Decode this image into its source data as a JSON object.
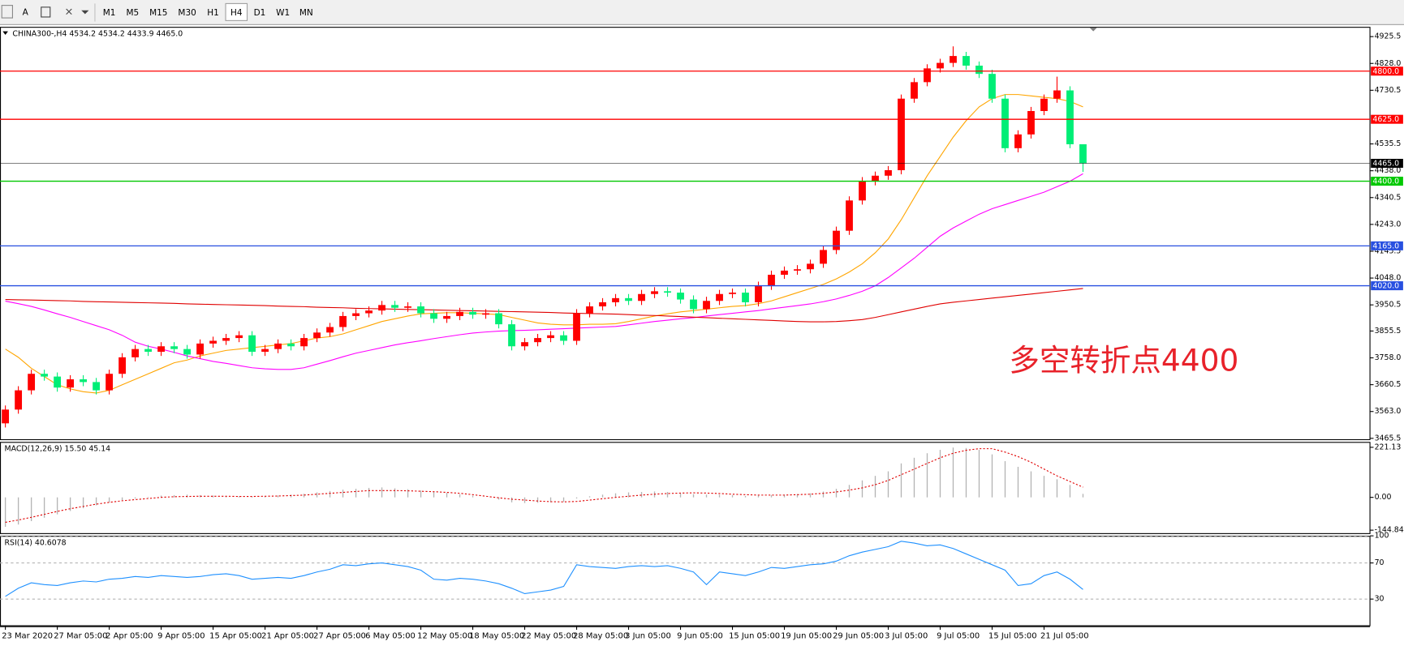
{
  "toolbar": {
    "text_tool": "A",
    "timeframes": [
      "M1",
      "M5",
      "M15",
      "M30",
      "H1",
      "H4",
      "D1",
      "W1",
      "MN"
    ]
  },
  "chart_data": [
    {
      "type": "candlestick",
      "title": "CHINA300-,H4  4534.2 4534.2 4433.9 4465.0",
      "categories": [
        "23 Mar 2020",
        null,
        null,
        null,
        "27 Mar 05:00",
        null,
        null,
        null,
        "2 Apr 05:00",
        null,
        null,
        null,
        "9 Apr 05:00",
        null,
        null,
        null,
        "15 Apr 05:00",
        null,
        null,
        null,
        "21 Apr 05:00",
        null,
        null,
        null,
        "27 Apr 05:00",
        null,
        null,
        null,
        "6 May 05:00",
        null,
        null,
        null,
        "12 May 05:00",
        null,
        null,
        null,
        "18 May 05:00",
        null,
        null,
        null,
        "22 May 05:00",
        null,
        null,
        null,
        "28 May 05:00",
        null,
        null,
        null,
        "3 Jun 05:00",
        null,
        null,
        null,
        "9 Jun 05:00",
        null,
        null,
        null,
        "15 Jun 05:00",
        null,
        null,
        null,
        "19 Jun 05:00",
        null,
        null,
        null,
        "29 Jun 05:00",
        null,
        null,
        null,
        "3 Jul 05:00",
        null,
        null,
        null,
        "9 Jul 05:00",
        null,
        null,
        null,
        "15 Jul 05:00",
        null,
        null,
        null,
        "21 Jul 05:00",
        null,
        null,
        null
      ],
      "open": [
        3520,
        3570,
        3640,
        3700,
        3690,
        3650,
        3680,
        3670,
        3640,
        3700,
        3760,
        3790,
        3780,
        3800,
        3790,
        3770,
        3810,
        3820,
        3830,
        3840,
        3780,
        3790,
        3810,
        3800,
        3830,
        3850,
        3870,
        3910,
        3920,
        3930,
        3950,
        3940,
        3945,
        3920,
        3900,
        3910,
        3925,
        3915,
        3920,
        3880,
        3800,
        3815,
        3830,
        3840,
        3820,
        3920,
        3945,
        3960,
        3975,
        3965,
        3990,
        4000,
        3995,
        3970,
        3935,
        3965,
        3990,
        3995,
        3960,
        4020,
        4060,
        4075,
        4080,
        4100,
        4150,
        4220,
        4330,
        4400,
        4420,
        4440,
        4700,
        4760,
        4810,
        4830,
        4855,
        4820,
        4790,
        4700,
        4520,
        4570,
        4655,
        4700,
        4730,
        4534.2
      ],
      "high": [
        3585,
        3655,
        3715,
        3715,
        3705,
        3695,
        3695,
        3685,
        3715,
        3775,
        3805,
        3805,
        3815,
        3815,
        3805,
        3825,
        3835,
        3845,
        3855,
        3855,
        3805,
        3825,
        3825,
        3845,
        3865,
        3885,
        3925,
        3935,
        3945,
        3965,
        3965,
        3960,
        3960,
        3935,
        3925,
        3940,
        3940,
        3935,
        3935,
        3895,
        3830,
        3845,
        3855,
        3855,
        3935,
        3960,
        3975,
        3990,
        3990,
        4005,
        4015,
        4015,
        4010,
        3985,
        3980,
        4005,
        4010,
        4010,
        4035,
        4075,
        4090,
        4095,
        4115,
        4165,
        4235,
        4345,
        4415,
        4435,
        4455,
        4715,
        4775,
        4825,
        4845,
        4890,
        4870,
        4835,
        4805,
        4715,
        4585,
        4670,
        4715,
        4780,
        4745,
        4534.2
      ],
      "low": [
        3505,
        3555,
        3625,
        3675,
        3635,
        3635,
        3655,
        3625,
        3625,
        3685,
        3745,
        3765,
        3765,
        3775,
        3755,
        3755,
        3795,
        3805,
        3815,
        3765,
        3765,
        3775,
        3785,
        3785,
        3815,
        3835,
        3855,
        3895,
        3905,
        3915,
        3925,
        3925,
        3905,
        3885,
        3885,
        3895,
        3900,
        3900,
        3865,
        3785,
        3785,
        3800,
        3815,
        3805,
        3805,
        3905,
        3930,
        3945,
        3950,
        3950,
        3975,
        3980,
        3955,
        3920,
        3920,
        3950,
        3975,
        3945,
        3945,
        4005,
        4045,
        4060,
        4065,
        4085,
        4135,
        4205,
        4315,
        4385,
        4405,
        4425,
        4685,
        4745,
        4795,
        4815,
        4805,
        4775,
        4685,
        4505,
        4505,
        4555,
        4640,
        4685,
        4520,
        4433.9
      ],
      "close": [
        3570,
        3640,
        3700,
        3690,
        3650,
        3680,
        3670,
        3640,
        3700,
        3760,
        3790,
        3780,
        3800,
        3790,
        3770,
        3810,
        3820,
        3830,
        3840,
        3780,
        3790,
        3810,
        3800,
        3830,
        3850,
        3870,
        3910,
        3920,
        3930,
        3950,
        3940,
        3945,
        3920,
        3900,
        3910,
        3925,
        3915,
        3920,
        3880,
        3800,
        3815,
        3830,
        3840,
        3820,
        3920,
        3945,
        3960,
        3975,
        3965,
        3990,
        4000,
        3995,
        3970,
        3935,
        3965,
        3990,
        3995,
        3960,
        4020,
        4060,
        4075,
        4080,
        4100,
        4150,
        4220,
        4330,
        4400,
        4420,
        4440,
        4700,
        4760,
        4810,
        4830,
        4855,
        4820,
        4790,
        4700,
        4520,
        4570,
        4655,
        4700,
        4730,
        4534.2,
        4465
      ],
      "up_color": "#ff0000",
      "down_color": "#00ee76",
      "lines": [
        {
          "color": "#ffa500",
          "values": [
            3790,
            3760,
            3720,
            3690,
            3660,
            3645,
            3635,
            3630,
            3640,
            3660,
            3680,
            3700,
            3720,
            3740,
            3750,
            3765,
            3775,
            3785,
            3790,
            3795,
            3800,
            3805,
            3810,
            3820,
            3830,
            3835,
            3845,
            3860,
            3875,
            3890,
            3900,
            3910,
            3918,
            3920,
            3922,
            3922,
            3920,
            3918,
            3915,
            3905,
            3895,
            3885,
            3880,
            3878,
            3878,
            3880,
            3880,
            3882,
            3890,
            3900,
            3910,
            3918,
            3925,
            3930,
            3935,
            3940,
            3945,
            3948,
            3955,
            3965,
            3980,
            3995,
            4010,
            4025,
            4045,
            4070,
            4100,
            4140,
            4190,
            4260,
            4340,
            4420,
            4490,
            4560,
            4620,
            4670,
            4700,
            4715,
            4715,
            4710,
            4705,
            4700,
            4690,
            4670
          ]
        },
        {
          "color": "#ff00ff",
          "values": [
            3964,
            3955,
            3945,
            3932,
            3918,
            3905,
            3890,
            3875,
            3860,
            3840,
            3815,
            3800,
            3790,
            3778,
            3765,
            3755,
            3745,
            3738,
            3730,
            3722,
            3718,
            3716,
            3716,
            3722,
            3735,
            3748,
            3762,
            3775,
            3785,
            3795,
            3805,
            3813,
            3820,
            3828,
            3835,
            3842,
            3848,
            3852,
            3855,
            3857,
            3858,
            3860,
            3862,
            3864,
            3866,
            3868,
            3870,
            3872,
            3878,
            3884,
            3890,
            3895,
            3900,
            3904,
            3910,
            3915,
            3920,
            3925,
            3930,
            3936,
            3942,
            3948,
            3954,
            3962,
            3972,
            3985,
            4000,
            4020,
            4050,
            4085,
            4120,
            4160,
            4200,
            4230,
            4255,
            4280,
            4300,
            4315,
            4330,
            4345,
            4360,
            4380,
            4400,
            4427
          ]
        },
        {
          "color": "#e00000",
          "values": [
            3970,
            3969,
            3968,
            3967,
            3966,
            3965,
            3963,
            3962,
            3961,
            3960,
            3959,
            3958,
            3957,
            3956,
            3954,
            3953,
            3952,
            3951,
            3950,
            3949,
            3948,
            3946,
            3945,
            3944,
            3942,
            3941,
            3940,
            3938,
            3937,
            3936,
            3935,
            3934,
            3933,
            3932,
            3931,
            3930,
            3929,
            3928,
            3927,
            3926,
            3925,
            3924,
            3923,
            3921,
            3920,
            3919,
            3918,
            3917,
            3915,
            3913,
            3912,
            3910,
            3908,
            3906,
            3904,
            3902,
            3900,
            3898,
            3896,
            3894,
            3892,
            3890,
            3889,
            3889,
            3890,
            3893,
            3897,
            3905,
            3915,
            3925,
            3935,
            3945,
            3954,
            3960,
            3965,
            3970,
            3975,
            3980,
            3985,
            3990,
            3995,
            4000,
            4005,
            4010
          ]
        }
      ],
      "levels": [
        {
          "value": 4800,
          "label": "4800.0",
          "color": "#ff0000"
        },
        {
          "value": 4625,
          "label": "4625.0",
          "color": "#ff0000"
        },
        {
          "value": 4465,
          "label": "4465.0",
          "color": "#000000"
        },
        {
          "value": 4400,
          "label": "4400.0",
          "color": "#00c800"
        },
        {
          "value": 4165,
          "label": "4165.0",
          "color": "#2850e0"
        },
        {
          "value": 4020,
          "label": "4020.0",
          "color": "#2850e0"
        }
      ],
      "annotation": {
        "text": "多空转折点4400",
        "color": "#e8222a"
      },
      "ylim": [
        3459,
        4961
      ],
      "yticks": [
        4925.5,
        {
          "value": 4828,
          "label": "4828.0"
        },
        4730.5,
        4535.5,
        {
          "value": 4438,
          "label": "4438.0"
        },
        4340.5,
        {
          "value": 4243,
          "label": "4243.0"
        },
        4145.5,
        {
          "value": 4048,
          "label": "4048.0"
        },
        3950.5,
        3855.5,
        {
          "value": 3758,
          "label": "3758.0"
        },
        3660.5,
        {
          "value": 3563,
          "label": "3563.0"
        },
        3465.5
      ]
    },
    {
      "type": "macd",
      "title": "MACD(12,26,9) 15.50 45.14",
      "histogram": [
        -130,
        -120,
        -105,
        -90,
        -75,
        -60,
        -48,
        -35,
        -22,
        -12,
        -5,
        2,
        8,
        10,
        12,
        10,
        8,
        6,
        5,
        3,
        6,
        8,
        12,
        16,
        22,
        28,
        34,
        38,
        42,
        44,
        40,
        36,
        30,
        24,
        20,
        14,
        8,
        0,
        -10,
        -22,
        -25,
        -24,
        -22,
        -20,
        -5,
        5,
        12,
        18,
        22,
        24,
        26,
        24,
        20,
        14,
        12,
        12,
        10,
        6,
        8,
        10,
        12,
        14,
        18,
        26,
        38,
        55,
        75,
        95,
        115,
        150,
        175,
        195,
        210,
        220,
        218,
        210,
        190,
        160,
        135,
        115,
        95,
        80,
        55,
        15.5
      ],
      "signal": [
        -110,
        -100,
        -88,
        -75,
        -62,
        -50,
        -40,
        -30,
        -22,
        -15,
        -10,
        -5,
        0,
        3,
        4,
        5,
        5,
        5,
        4,
        4,
        5,
        6,
        8,
        10,
        14,
        18,
        22,
        26,
        30,
        30,
        30,
        29,
        27,
        25,
        22,
        18,
        12,
        5,
        -2,
        -8,
        -12,
        -16,
        -19,
        -20,
        -18,
        -12,
        -6,
        0,
        5,
        10,
        14,
        17,
        19,
        20,
        19,
        17,
        14,
        12,
        10,
        10,
        10,
        12,
        14,
        18,
        24,
        32,
        42,
        56,
        75,
        100,
        125,
        150,
        175,
        195,
        208,
        215,
        215,
        200,
        180,
        155,
        125,
        95,
        70,
        45.14
      ],
      "hist_color": "#b4b4b4",
      "signal_color": "#e00000",
      "ylim": [
        -162,
        245
      ],
      "yticks": [
        221.13,
        {
          "value": 0,
          "label": "0.00"
        },
        -144.84
      ]
    },
    {
      "type": "rsi",
      "title": "RSI(14) 40.6078",
      "values": [
        33,
        42,
        48,
        46,
        45,
        48,
        50,
        49,
        52,
        53,
        55,
        54,
        56,
        55,
        54,
        55,
        57,
        58,
        56,
        52,
        53,
        54,
        53,
        56,
        60,
        63,
        68,
        67,
        69,
        70,
        68,
        66,
        62,
        52,
        51,
        53,
        52,
        50,
        47,
        42,
        36,
        38,
        40,
        44,
        68,
        66,
        65,
        64,
        66,
        67,
        66,
        67,
        64,
        60,
        46,
        60,
        58,
        56,
        60,
        65,
        64,
        66,
        68,
        69,
        72,
        78,
        82,
        85,
        88,
        94,
        92,
        89,
        90,
        86,
        80,
        74,
        68,
        62,
        45,
        47,
        56,
        60,
        52,
        40.6078
      ],
      "color": "#1e90ff",
      "grid": true,
      "ylim": [
        0,
        100
      ],
      "yticks": [
        100,
        70,
        30
      ]
    }
  ]
}
